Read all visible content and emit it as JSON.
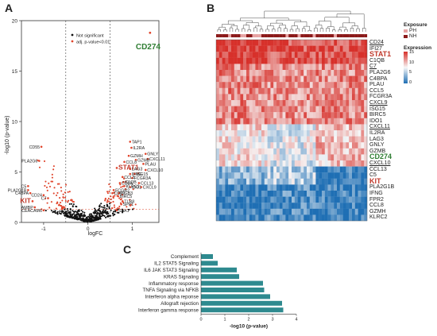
{
  "panels": {
    "a": "A",
    "b": "B",
    "c": "C"
  },
  "colors": {
    "sig": "#e0442b",
    "nonsig": "#111111",
    "bar": "#2e8a8f",
    "heat_high": "#d7302a",
    "heat_mid": "#f7f7f7",
    "heat_low": "#1f6fb4",
    "label_red": "#c0392b",
    "label_green": "#2e7d32",
    "exposure_ph": "#e6a3a3",
    "exposure_nh": "#8b1a1a"
  },
  "chart_data": [
    {
      "type": "scatter",
      "title": "",
      "xlabel": "logFC",
      "ylabel": "-log10 (p-value)",
      "xlim": [
        -1.5,
        1.6
      ],
      "ylim": [
        0,
        20
      ],
      "xticks": [
        "-1",
        "0",
        "1"
      ],
      "yticks": [
        "0",
        "5",
        "10",
        "15",
        "20"
      ],
      "threshold_x": [
        -0.5,
        0.5
      ],
      "threshold_y": 1.3,
      "legend": {
        "position": "top-center",
        "entries": [
          "Not significant",
          "adj. p-value<0.01"
        ]
      },
      "highlight": {
        "label": "CD274",
        "x": 1.4,
        "y": 18.8
      },
      "labeled_points": [
        {
          "label": "CD55",
          "x": -1.05,
          "y": 7.5
        },
        {
          "label": "PLA2G6",
          "x": -1.1,
          "y": 6.1
        },
        {
          "label": "C5",
          "x": -1.35,
          "y": 3.6
        },
        {
          "label": "PLA2G1B",
          "x": -1.35,
          "y": 3.2
        },
        {
          "label": "C4BPA",
          "x": -1.3,
          "y": 2.9
        },
        {
          "label": "CD24",
          "x": -1.0,
          "y": 2.7
        },
        {
          "label": "C7",
          "x": -0.9,
          "y": 2.4
        },
        {
          "label": "KIT",
          "x": -1.25,
          "y": 2.1
        },
        {
          "label": "AMBP",
          "x": -1.2,
          "y": 1.5
        },
        {
          "label": "CEACAM6",
          "x": -1.0,
          "y": 1.2
        },
        {
          "label": "TAP1",
          "x": 0.95,
          "y": 8.0
        },
        {
          "label": "IL2RA",
          "x": 0.98,
          "y": 7.4
        },
        {
          "label": "GZMH",
          "x": 0.92,
          "y": 6.6
        },
        {
          "label": "GNLY",
          "x": 1.3,
          "y": 6.8
        },
        {
          "label": "CXCL11",
          "x": 1.35,
          "y": 6.3
        },
        {
          "label": "GZMB",
          "x": 1.08,
          "y": 6.2
        },
        {
          "label": "CCL8",
          "x": 0.82,
          "y": 6.0
        },
        {
          "label": "PLAU",
          "x": 1.25,
          "y": 5.8
        },
        {
          "label": "STAT1",
          "x": 0.65,
          "y": 5.4
        },
        {
          "label": "CXCL10",
          "x": 1.3,
          "y": 5.2
        },
        {
          "label": "LAG3",
          "x": 0.95,
          "y": 5.3
        },
        {
          "label": "IFNG",
          "x": 0.95,
          "y": 4.8
        },
        {
          "label": "ISG15",
          "x": 1.05,
          "y": 4.8
        },
        {
          "label": "CCL5",
          "x": 0.78,
          "y": 4.5
        },
        {
          "label": "FCGR3A",
          "x": 1.0,
          "y": 4.4
        },
        {
          "label": "C1QB",
          "x": 0.8,
          "y": 4.0
        },
        {
          "label": "CD8A",
          "x": 0.72,
          "y": 3.9
        },
        {
          "label": "CCL13",
          "x": 1.15,
          "y": 3.9
        },
        {
          "label": "KLRC2",
          "x": 0.82,
          "y": 3.6
        },
        {
          "label": "IDO1",
          "x": 0.95,
          "y": 3.5
        },
        {
          "label": "CXCL9",
          "x": 1.2,
          "y": 3.5
        },
        {
          "label": "FCGR2",
          "x": 0.58,
          "y": 3.2
        },
        {
          "label": "ITGB3",
          "x": 0.7,
          "y": 2.9
        },
        {
          "label": "CD69",
          "x": 0.55,
          "y": 2.9
        },
        {
          "label": "BIRC5",
          "x": 0.68,
          "y": 2.6
        },
        {
          "label": "TLR8",
          "x": 0.78,
          "y": 2.1
        },
        {
          "label": "SPP1",
          "x": 0.75,
          "y": 1.8
        },
        {
          "label": "SAA1",
          "x": 0.65,
          "y": 1.2
        }
      ]
    },
    {
      "type": "heatmap",
      "rows": [
        "CD24",
        "IFI27",
        "STAT1",
        "C1QB",
        "C7",
        "PLA2G6",
        "C4BPA",
        "PLAU",
        "CCL5",
        "FCGR3A",
        "CXCL9",
        "ISG15",
        "BIRC5",
        "IDO1",
        "CXCL11",
        "IL2RA",
        "LAG3",
        "GNLY",
        "GZMB",
        "CD274",
        "CXCL10",
        "CCL13",
        "C5",
        "KIT",
        "PLA2G1B",
        "IFNG",
        "FPR2",
        "CCL8",
        "GZMH",
        "KLRC2"
      ],
      "highlight_red": [
        "STAT1",
        "KIT"
      ],
      "highlight_green": [
        "CD274"
      ],
      "underlined": [
        "CD24",
        "C7",
        "CXCL9",
        "CXCL11",
        "CXCL10"
      ],
      "exposure_legend": {
        "title": "Exposure",
        "entries": [
          "PH",
          "NH"
        ]
      },
      "expression_legend": {
        "title": "Expression",
        "ticks": [
          "15",
          "10",
          "5",
          "0"
        ]
      },
      "block_values": [
        [
          1.0,
          0.85,
          0.9
        ],
        [
          0.55,
          0.5,
          0.55
        ],
        [
          0.1,
          -0.1,
          0.3
        ],
        [
          -0.5,
          -0.3,
          -0.9
        ],
        [
          -0.95,
          -0.8,
          -0.9
        ]
      ],
      "row_blocks": [
        4,
        10,
        7,
        3,
        6
      ]
    },
    {
      "type": "bar",
      "orientation": "horizontal",
      "categories": [
        "Complement",
        "IL2 STAT5 Signaling",
        "IL6 JAK STAT3 Signaling",
        "KRAS Signaling",
        "Inflammatory response",
        "TNFA Signaling via NFKB",
        "Interferon alpha reponse",
        "Allograft rejection",
        "Interferon gamma response"
      ],
      "values": [
        0.5,
        0.7,
        1.5,
        1.6,
        2.6,
        2.65,
        2.9,
        3.4,
        3.45
      ],
      "xlabel": "-log10 (p-value)",
      "xlim": [
        0,
        4
      ],
      "xticks": [
        "0",
        "1",
        "2",
        "3",
        "4"
      ]
    }
  ]
}
